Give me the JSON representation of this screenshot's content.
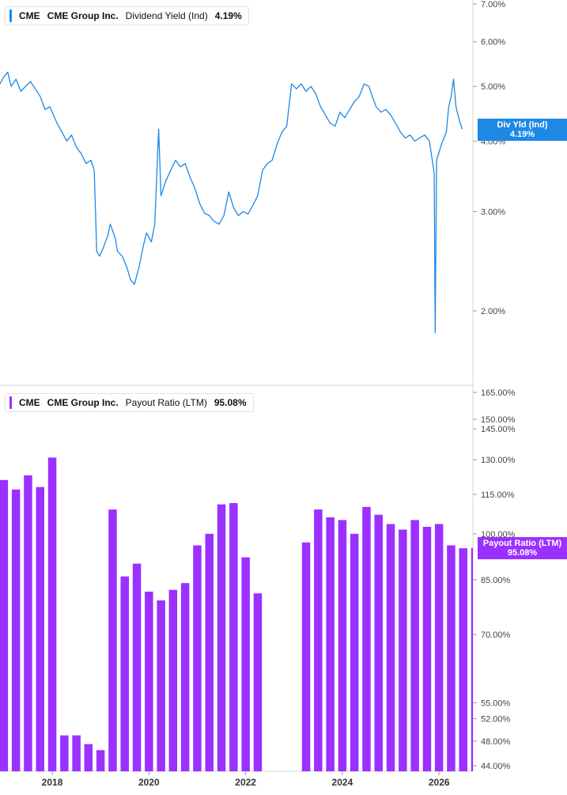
{
  "colors": {
    "yield_line": "#1e88e5",
    "payout_bars": "#9b30ff",
    "grid": "#e6e6e6",
    "divider": "#cfcfcf"
  },
  "top_legend": {
    "ticker": "CME",
    "company": "CME Group Inc.",
    "metric": "Dividend Yield (Ind)",
    "value": "4.19%"
  },
  "bottom_legend": {
    "ticker": "CME",
    "company": "CME Group Inc.",
    "metric": "Payout Ratio (LTM)",
    "value": "95.08%"
  },
  "top_flag": {
    "label": "Div Yld (Ind)",
    "value": "4.19%"
  },
  "bottom_flag": {
    "label": "Payout Ratio (LTM)",
    "value": "95.08%"
  },
  "chart_data": [
    {
      "type": "line",
      "series": [
        {
          "name": "Dividend Yield (Ind)"
        }
      ],
      "y_scale": "log",
      "y_unit": "%",
      "y_ticks": [
        "7.00%",
        "6.00%",
        "5.00%",
        "4.00%",
        "3.00%",
        "2.00%"
      ],
      "y_tick_values": [
        7,
        6,
        5,
        4,
        3,
        2
      ],
      "ylim": [
        1.75,
        7.0
      ],
      "xlim": [
        2016.92,
        2026.7
      ],
      "last_value": 4.19,
      "points": [
        [
          2016.92,
          5.05
        ],
        [
          2017.0,
          5.2
        ],
        [
          2017.08,
          5.3
        ],
        [
          2017.15,
          5.0
        ],
        [
          2017.25,
          5.15
        ],
        [
          2017.35,
          4.9
        ],
        [
          2017.45,
          5.0
        ],
        [
          2017.55,
          5.1
        ],
        [
          2017.65,
          4.95
        ],
        [
          2017.75,
          4.8
        ],
        [
          2017.85,
          4.55
        ],
        [
          2017.95,
          4.6
        ],
        [
          2018.1,
          4.3
        ],
        [
          2018.2,
          4.15
        ],
        [
          2018.3,
          4.0
        ],
        [
          2018.4,
          4.1
        ],
        [
          2018.5,
          3.9
        ],
        [
          2018.6,
          3.8
        ],
        [
          2018.7,
          3.65
        ],
        [
          2018.8,
          3.7
        ],
        [
          2018.87,
          3.55
        ],
        [
          2018.92,
          2.55
        ],
        [
          2018.98,
          2.5
        ],
        [
          2019.05,
          2.58
        ],
        [
          2019.15,
          2.72
        ],
        [
          2019.2,
          2.85
        ],
        [
          2019.3,
          2.7
        ],
        [
          2019.35,
          2.55
        ],
        [
          2019.45,
          2.5
        ],
        [
          2019.55,
          2.38
        ],
        [
          2019.62,
          2.27
        ],
        [
          2019.7,
          2.23
        ],
        [
          2019.8,
          2.4
        ],
        [
          2019.88,
          2.6
        ],
        [
          2019.95,
          2.75
        ],
        [
          2020.05,
          2.65
        ],
        [
          2020.12,
          2.85
        ],
        [
          2020.2,
          4.2
        ],
        [
          2020.25,
          3.2
        ],
        [
          2020.35,
          3.4
        ],
        [
          2020.45,
          3.55
        ],
        [
          2020.55,
          3.7
        ],
        [
          2020.65,
          3.6
        ],
        [
          2020.75,
          3.65
        ],
        [
          2020.85,
          3.45
        ],
        [
          2020.95,
          3.3
        ],
        [
          2021.05,
          3.1
        ],
        [
          2021.15,
          2.98
        ],
        [
          2021.25,
          2.95
        ],
        [
          2021.35,
          2.88
        ],
        [
          2021.45,
          2.85
        ],
        [
          2021.55,
          2.95
        ],
        [
          2021.65,
          3.25
        ],
        [
          2021.75,
          3.05
        ],
        [
          2021.85,
          2.95
        ],
        [
          2021.95,
          3.0
        ],
        [
          2022.05,
          2.97
        ],
        [
          2022.15,
          3.08
        ],
        [
          2022.25,
          3.2
        ],
        [
          2022.35,
          3.55
        ],
        [
          2022.45,
          3.65
        ],
        [
          2022.55,
          3.7
        ],
        [
          2022.65,
          3.95
        ],
        [
          2022.75,
          4.15
        ],
        [
          2022.85,
          4.25
        ],
        [
          2022.95,
          5.05
        ],
        [
          2023.05,
          4.95
        ],
        [
          2023.15,
          5.05
        ],
        [
          2023.25,
          4.9
        ],
        [
          2023.35,
          5.0
        ],
        [
          2023.45,
          4.85
        ],
        [
          2023.55,
          4.6
        ],
        [
          2023.65,
          4.45
        ],
        [
          2023.75,
          4.3
        ],
        [
          2023.85,
          4.25
        ],
        [
          2023.95,
          4.5
        ],
        [
          2024.05,
          4.4
        ],
        [
          2024.15,
          4.55
        ],
        [
          2024.25,
          4.7
        ],
        [
          2024.35,
          4.8
        ],
        [
          2024.45,
          5.05
        ],
        [
          2024.55,
          5.0
        ],
        [
          2024.62,
          4.8
        ],
        [
          2024.7,
          4.6
        ],
        [
          2024.8,
          4.5
        ],
        [
          2024.9,
          4.55
        ],
        [
          2025.0,
          4.45
        ],
        [
          2025.1,
          4.3
        ],
        [
          2025.2,
          4.15
        ],
        [
          2025.3,
          4.05
        ],
        [
          2025.4,
          4.1
        ],
        [
          2025.5,
          4.0
        ],
        [
          2025.6,
          4.05
        ],
        [
          2025.7,
          4.1
        ],
        [
          2025.8,
          4.0
        ],
        [
          2025.85,
          3.75
        ],
        [
          2025.9,
          3.5
        ],
        [
          2025.92,
          1.83
        ],
        [
          2025.95,
          3.7
        ],
        [
          2026.05,
          3.95
        ],
        [
          2026.15,
          4.15
        ],
        [
          2026.2,
          4.6
        ],
        [
          2026.25,
          4.8
        ],
        [
          2026.3,
          5.15
        ],
        [
          2026.35,
          4.6
        ],
        [
          2026.42,
          4.35
        ],
        [
          2026.48,
          4.2
        ]
      ]
    },
    {
      "type": "bar",
      "series": [
        {
          "name": "Payout Ratio (LTM)"
        }
      ],
      "y_scale": "log",
      "y_unit": "%",
      "y_ticks": [
        "165.00%",
        "150.00%",
        "145.00%",
        "130.00%",
        "115.00%",
        "100.00%",
        "85.00%",
        "70.00%",
        "55.00%",
        "52.00%",
        "48.00%",
        "44.00%"
      ],
      "y_tick_values": [
        165,
        150,
        145,
        130,
        115,
        100,
        85,
        70,
        55,
        52,
        48,
        44
      ],
      "ylim": [
        43.5,
        165
      ],
      "xlim": [
        2016.92,
        2026.7
      ],
      "x_ticks": [
        "2018",
        "2020",
        "2022",
        "2024",
        "2026"
      ],
      "x_tick_values": [
        2018,
        2020,
        2022,
        2024,
        2026
      ],
      "last_value": 95.08,
      "bars": [
        [
          2017.0,
          121
        ],
        [
          2017.25,
          117
        ],
        [
          2017.5,
          123
        ],
        [
          2017.75,
          118
        ],
        [
          2018.0,
          131
        ],
        [
          2018.25,
          49
        ],
        [
          2018.5,
          49
        ],
        [
          2018.75,
          47.5
        ],
        [
          2019.0,
          46.5
        ],
        [
          2019.25,
          109
        ],
        [
          2019.5,
          86
        ],
        [
          2019.75,
          90
        ],
        [
          2020.0,
          81.5
        ],
        [
          2020.25,
          79
        ],
        [
          2020.5,
          82
        ],
        [
          2020.75,
          84
        ],
        [
          2021.0,
          96
        ],
        [
          2021.25,
          100
        ],
        [
          2021.5,
          111
        ],
        [
          2021.75,
          111.5
        ],
        [
          2022.0,
          92
        ],
        [
          2022.25,
          81
        ],
        [
          2023.25,
          97
        ],
        [
          2023.5,
          109
        ],
        [
          2023.75,
          106
        ],
        [
          2024.0,
          105
        ],
        [
          2024.25,
          100
        ],
        [
          2024.5,
          110
        ],
        [
          2024.75,
          107
        ],
        [
          2025.0,
          103.5
        ],
        [
          2025.25,
          101.5
        ],
        [
          2025.5,
          105
        ],
        [
          2025.75,
          102.5
        ],
        [
          2026.0,
          103.5
        ],
        [
          2026.25,
          96
        ],
        [
          2026.5,
          95
        ],
        [
          2026.75,
          95.08
        ]
      ]
    }
  ]
}
